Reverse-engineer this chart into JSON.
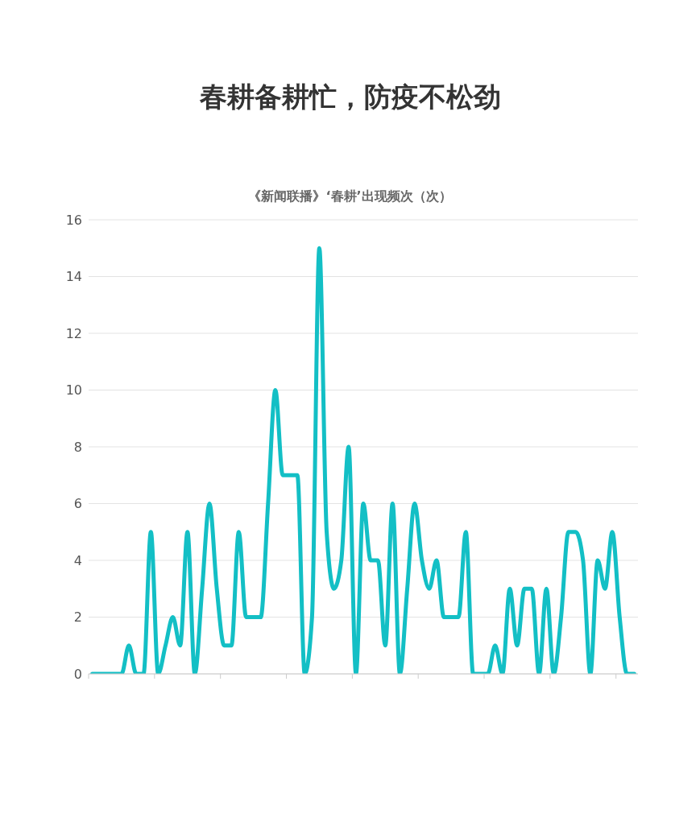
{
  "chart_data": {
    "type": "line",
    "title": "春耕备耕忙，防疫不松劲",
    "subtitle": "《新闻联播》‘春耕’出现频次（次）",
    "categories": [
      null,
      null,
      null,
      null,
      null,
      null,
      null,
      null,
      null,
      null,
      null,
      null,
      null,
      null,
      null,
      null,
      null,
      null,
      null,
      null,
      null,
      null,
      null,
      null,
      null,
      null,
      null,
      null,
      null,
      null,
      null,
      null,
      null,
      null,
      null,
      null,
      null,
      null,
      null,
      null,
      null,
      null,
      null,
      null,
      null,
      null,
      null,
      null,
      null,
      null,
      null,
      null,
      null,
      null,
      null,
      null,
      null,
      null,
      null,
      null,
      null,
      null,
      null,
      null,
      null,
      null,
      null,
      null,
      null,
      null,
      null,
      null,
      null,
      null,
      null
    ],
    "series": [
      {
        "color": "#13bfc5",
        "values": [
          0,
          0,
          0,
          0,
          0,
          1,
          0,
          0,
          5,
          0,
          1,
          2,
          1,
          5,
          0,
          3,
          6,
          3,
          1,
          1,
          5,
          2,
          2,
          2,
          6,
          10,
          7,
          7,
          7,
          0,
          2,
          15,
          5,
          3,
          4,
          8,
          0,
          6,
          4,
          4,
          1,
          6,
          0,
          3,
          6,
          4,
          3,
          4,
          2,
          2,
          2,
          5,
          0,
          0,
          0,
          1,
          0,
          3,
          1,
          3,
          3,
          0,
          3,
          0,
          2,
          5,
          5,
          4,
          0,
          4,
          3,
          5,
          2,
          0,
          0
        ]
      }
    ],
    "ylim": [
      0,
      16
    ],
    "yticks": [
      0,
      2,
      4,
      6,
      8,
      10,
      12,
      14,
      16
    ],
    "grid": "y",
    "tick_labels": "y",
    "legend": false,
    "marker": "none",
    "line_style": "solid"
  }
}
